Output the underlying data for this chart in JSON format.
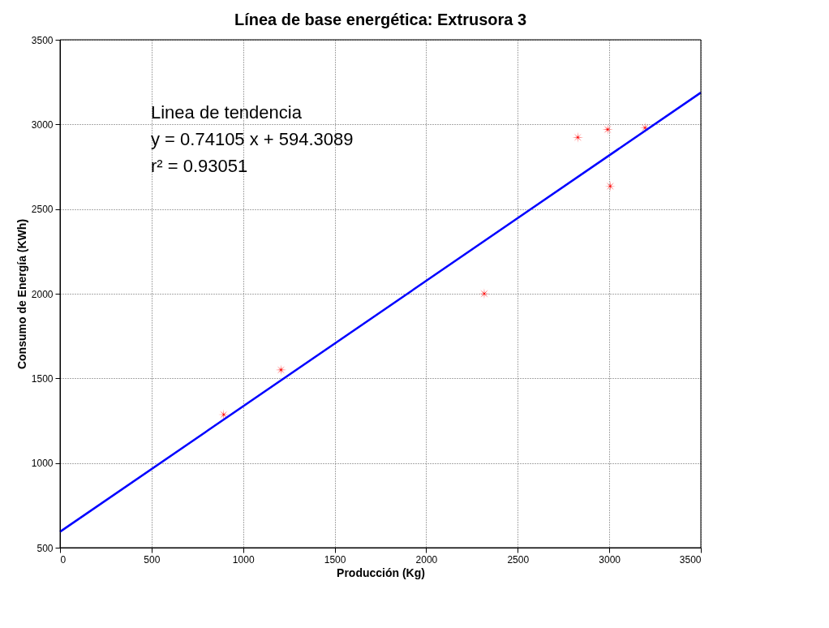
{
  "chart_data": {
    "type": "scatter",
    "title": "Línea de base energética: Extrusora 3",
    "xlabel": "Producción (Kg)",
    "ylabel": "Consumo de Energía (KWh)",
    "x": [
      894,
      1207,
      2317,
      2828,
      2991,
      3005,
      3195
    ],
    "series": [
      {
        "color": "#ff0000",
        "marker": "star",
        "values": [
          1286,
          1550,
          2000,
          2924,
          2970,
          2635,
          2980
        ]
      },
      {
        "type": "line",
        "color": "#0000ff",
        "x": [
          0,
          3500
        ],
        "values": [
          594,
          3188
        ],
        "marker": "none",
        "line_style": "solid"
      }
    ],
    "xlim": [
      0,
      3500
    ],
    "ylim": [
      500,
      3500
    ],
    "xticks": [
      0,
      500,
      1000,
      1500,
      2000,
      2500,
      3000,
      3500
    ],
    "yticks": [
      500,
      1000,
      1500,
      2000,
      2500,
      3000,
      3500
    ],
    "grid": true,
    "annotations": [
      "Linea de tendencia",
      "y = 0.74105 x + 594.3089",
      "r² = 0.93051"
    ]
  }
}
